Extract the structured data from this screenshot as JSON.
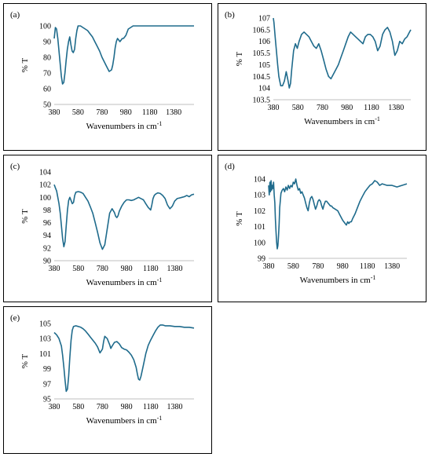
{
  "chart_data": [
    {
      "panel": "(a)",
      "type": "line",
      "xlabel": "Wavenumbers  in cm-1",
      "ylabel": "% T",
      "xlim": [
        380,
        1550
      ],
      "ylim": [
        50,
        100
      ],
      "xticks": [
        380,
        580,
        780,
        980,
        1180,
        1380
      ],
      "yticks": [
        50,
        60,
        70,
        80,
        90,
        100
      ],
      "color": "#1f6b8c",
      "series": [
        {
          "x": [
            380,
            390,
            400,
            410,
            420,
            430,
            440,
            450,
            460,
            470,
            480,
            490,
            500,
            510,
            520,
            530,
            540,
            550,
            560,
            570,
            580,
            590,
            600,
            620,
            640,
            660,
            680,
            700,
            720,
            740,
            760,
            780,
            800,
            820,
            840,
            860,
            870,
            880,
            890,
            900,
            910,
            920,
            930,
            940,
            950,
            960,
            970,
            980,
            990,
            1000,
            1020,
            1040,
            1060,
            1080,
            1100,
            1150,
            1200,
            1300,
            1400,
            1550
          ],
          "y": [
            92,
            99,
            98,
            92,
            84,
            76,
            68,
            63,
            64,
            70,
            78,
            85,
            90,
            93,
            88,
            84,
            83,
            85,
            92,
            97,
            100,
            100,
            100,
            99,
            98,
            97,
            95,
            93,
            90,
            87,
            84,
            80,
            77,
            74,
            71,
            72,
            75,
            80,
            86,
            90,
            92,
            91,
            90,
            91,
            92,
            92,
            93,
            94,
            96,
            98,
            99,
            100,
            100,
            100,
            100,
            100,
            100,
            100,
            100,
            100
          ]
        }
      ]
    },
    {
      "panel": "(b)",
      "type": "line",
      "xlabel": "Wavenumbers in cm-1",
      "ylabel": "% T",
      "xlim": [
        380,
        1500
      ],
      "ylim": [
        103.5,
        107
      ],
      "xticks": [
        380,
        580,
        780,
        980,
        1180,
        1380
      ],
      "yticks": [
        103.5,
        104,
        104.5,
        105,
        105.5,
        106,
        106.5,
        107
      ],
      "color": "#1f6b8c",
      "series": [
        {
          "x": [
            380,
            385,
            395,
            405,
            415,
            425,
            440,
            455,
            470,
            485,
            500,
            510,
            520,
            530,
            545,
            560,
            575,
            590,
            610,
            630,
            650,
            670,
            690,
            710,
            730,
            750,
            770,
            790,
            810,
            830,
            850,
            870,
            890,
            910,
            930,
            950,
            970,
            990,
            1010,
            1030,
            1050,
            1070,
            1090,
            1110,
            1130,
            1150,
            1170,
            1190,
            1210,
            1230,
            1250,
            1270,
            1290,
            1310,
            1330,
            1350,
            1370,
            1390,
            1410,
            1430,
            1450,
            1470,
            1490,
            1500
          ],
          "y": [
            107,
            106.8,
            106.2,
            105.6,
            105.0,
            104.5,
            104.1,
            104.1,
            104.3,
            104.7,
            104.3,
            104.0,
            104.2,
            104.8,
            105.6,
            105.9,
            105.7,
            106.0,
            106.3,
            106.4,
            106.3,
            106.2,
            106.0,
            105.8,
            105.7,
            105.9,
            105.6,
            105.2,
            104.8,
            104.5,
            104.4,
            104.6,
            104.8,
            105.0,
            105.3,
            105.6,
            105.9,
            106.2,
            106.4,
            106.3,
            106.2,
            106.1,
            106.0,
            105.9,
            106.2,
            106.3,
            106.3,
            106.2,
            106.0,
            105.6,
            105.8,
            106.3,
            106.5,
            106.6,
            106.4,
            106.0,
            105.4,
            105.6,
            106.0,
            105.9,
            106.1,
            106.2,
            106.4,
            106.5
          ]
        }
      ]
    },
    {
      "panel": "(c)",
      "type": "line",
      "xlabel": "Wavenumbers in cm-1",
      "ylabel": "% T",
      "xlim": [
        380,
        1540
      ],
      "ylim": [
        90,
        104
      ],
      "xticks": [
        380,
        580,
        780,
        980,
        1180,
        1380
      ],
      "yticks": [
        90,
        92,
        94,
        96,
        98,
        100,
        102,
        104
      ],
      "color": "#1f6b8c",
      "series": [
        {
          "x": [
            380,
            390,
            400,
            410,
            420,
            430,
            440,
            450,
            460,
            470,
            480,
            490,
            500,
            510,
            520,
            530,
            540,
            550,
            560,
            580,
            600,
            620,
            640,
            660,
            680,
            700,
            720,
            740,
            760,
            780,
            800,
            820,
            840,
            860,
            880,
            890,
            900,
            910,
            920,
            940,
            960,
            980,
            1000,
            1020,
            1040,
            1060,
            1080,
            1100,
            1120,
            1140,
            1160,
            1180,
            1190,
            1200,
            1210,
            1220,
            1240,
            1260,
            1280,
            1300,
            1320,
            1340,
            1360,
            1380,
            1400,
            1420,
            1440,
            1460,
            1480,
            1500,
            1520,
            1540
          ],
          "y": [
            102,
            101.5,
            101,
            100,
            99,
            97.5,
            95.5,
            93.5,
            92.2,
            93,
            95.5,
            98,
            99.5,
            100,
            99.5,
            99.0,
            99.2,
            100.3,
            100.8,
            100.9,
            100.8,
            100.6,
            100.0,
            99.4,
            98.5,
            97.5,
            96.0,
            94.5,
            92.8,
            91.8,
            92.5,
            95.0,
            97.5,
            98.2,
            97.6,
            97.0,
            96.8,
            97.1,
            97.8,
            98.6,
            99.2,
            99.6,
            99.6,
            99.5,
            99.6,
            99.8,
            100.0,
            99.8,
            99.6,
            99.0,
            98.4,
            98.0,
            98.8,
            99.8,
            100.3,
            100.5,
            100.7,
            100.6,
            100.3,
            99.8,
            98.8,
            98.2,
            98.6,
            99.4,
            99.8,
            99.9,
            100.0,
            100.1,
            100.3,
            100.1,
            100.4,
            100.5
          ]
        }
      ]
    },
    {
      "panel": "(d)",
      "type": "line",
      "xlabel": "Wavenumbers in cm-1",
      "ylabel": "% T",
      "xlim": [
        380,
        1500
      ],
      "ylim": [
        99,
        104
      ],
      "xticks": [
        380,
        580,
        780,
        980,
        1180,
        1380
      ],
      "yticks": [
        99,
        100,
        101,
        102,
        103,
        104
      ],
      "color": "#1f6b8c",
      "series": [
        {
          "x": [
            380,
            385,
            390,
            395,
            400,
            405,
            410,
            415,
            420,
            425,
            430,
            435,
            440,
            445,
            450,
            455,
            460,
            465,
            470,
            480,
            490,
            500,
            510,
            520,
            530,
            540,
            550,
            560,
            570,
            580,
            590,
            600,
            610,
            620,
            630,
            640,
            650,
            660,
            670,
            680,
            690,
            700,
            710,
            720,
            730,
            740,
            750,
            760,
            770,
            780,
            790,
            800,
            810,
            820,
            830,
            840,
            850,
            860,
            870,
            880,
            890,
            900,
            920,
            940,
            960,
            980,
            1000,
            1010,
            1020,
            1030,
            1040,
            1050,
            1060,
            1080,
            1100,
            1120,
            1140,
            1160,
            1180,
            1200,
            1220,
            1240,
            1260,
            1280,
            1300,
            1340,
            1380,
            1420,
            1460,
            1500
          ],
          "y": [
            103.6,
            103.0,
            103.8,
            103.2,
            103.9,
            103.3,
            103.6,
            103.4,
            103.8,
            103.0,
            102.5,
            101.5,
            100.7,
            100.0,
            99.6,
            99.8,
            100.4,
            101.2,
            102.2,
            103.1,
            103.3,
            103.4,
            103.2,
            103.5,
            103.3,
            103.6,
            103.4,
            103.6,
            103.5,
            103.8,
            103.7,
            104.0,
            103.6,
            103.3,
            103.4,
            103.1,
            103.2,
            103.0,
            102.8,
            102.5,
            102.2,
            102.0,
            102.5,
            102.8,
            102.9,
            102.7,
            102.4,
            102.1,
            102.3,
            102.6,
            102.7,
            102.6,
            102.3,
            102.1,
            102.4,
            102.6,
            102.6,
            102.5,
            102.4,
            102.3,
            102.3,
            102.2,
            102.1,
            102.0,
            101.7,
            101.4,
            101.2,
            101.1,
            101.3,
            101.2,
            101.3,
            101.3,
            101.5,
            101.8,
            102.2,
            102.6,
            102.9,
            103.2,
            103.4,
            103.6,
            103.7,
            103.9,
            103.8,
            103.6,
            103.7,
            103.6,
            103.6,
            103.5,
            103.6,
            103.7
          ]
        }
      ]
    },
    {
      "panel": "(e)",
      "type": "line",
      "xlabel": "Wavenumbers in cm-1",
      "ylabel": "% T",
      "xlim": [
        380,
        1540
      ],
      "ylim": [
        95,
        105
      ],
      "xticks": [
        380,
        580,
        780,
        980,
        1180,
        1380
      ],
      "yticks": [
        95,
        97,
        99,
        101,
        103,
        105
      ],
      "color": "#1f6b8c",
      "series": [
        {
          "x": [
            380,
            400,
            420,
            440,
            450,
            460,
            470,
            480,
            490,
            500,
            510,
            520,
            530,
            540,
            560,
            580,
            600,
            620,
            640,
            660,
            680,
            700,
            720,
            740,
            760,
            780,
            790,
            800,
            820,
            840,
            850,
            860,
            880,
            900,
            920,
            940,
            960,
            980,
            1000,
            1020,
            1040,
            1060,
            1070,
            1080,
            1090,
            1100,
            1120,
            1140,
            1160,
            1180,
            1200,
            1220,
            1240,
            1260,
            1280,
            1300,
            1340,
            1380,
            1420,
            1460,
            1500,
            1540
          ],
          "y": [
            103.8,
            103.5,
            103.0,
            102.0,
            100.8,
            99.2,
            97.5,
            96.0,
            96.3,
            98.0,
            100.5,
            102.8,
            104.1,
            104.6,
            104.7,
            104.6,
            104.5,
            104.3,
            104.0,
            103.6,
            103.2,
            102.8,
            102.4,
            101.9,
            101.1,
            101.6,
            102.6,
            103.3,
            103.0,
            102.2,
            101.7,
            102.0,
            102.5,
            102.6,
            102.3,
            101.8,
            101.6,
            101.5,
            101.2,
            100.8,
            100.2,
            99.2,
            98.3,
            97.6,
            97.5,
            98.0,
            99.5,
            101.0,
            102.1,
            102.8,
            103.4,
            104.0,
            104.5,
            104.8,
            104.8,
            104.7,
            104.7,
            104.6,
            104.6,
            104.5,
            104.5,
            104.4
          ]
        }
      ]
    }
  ]
}
